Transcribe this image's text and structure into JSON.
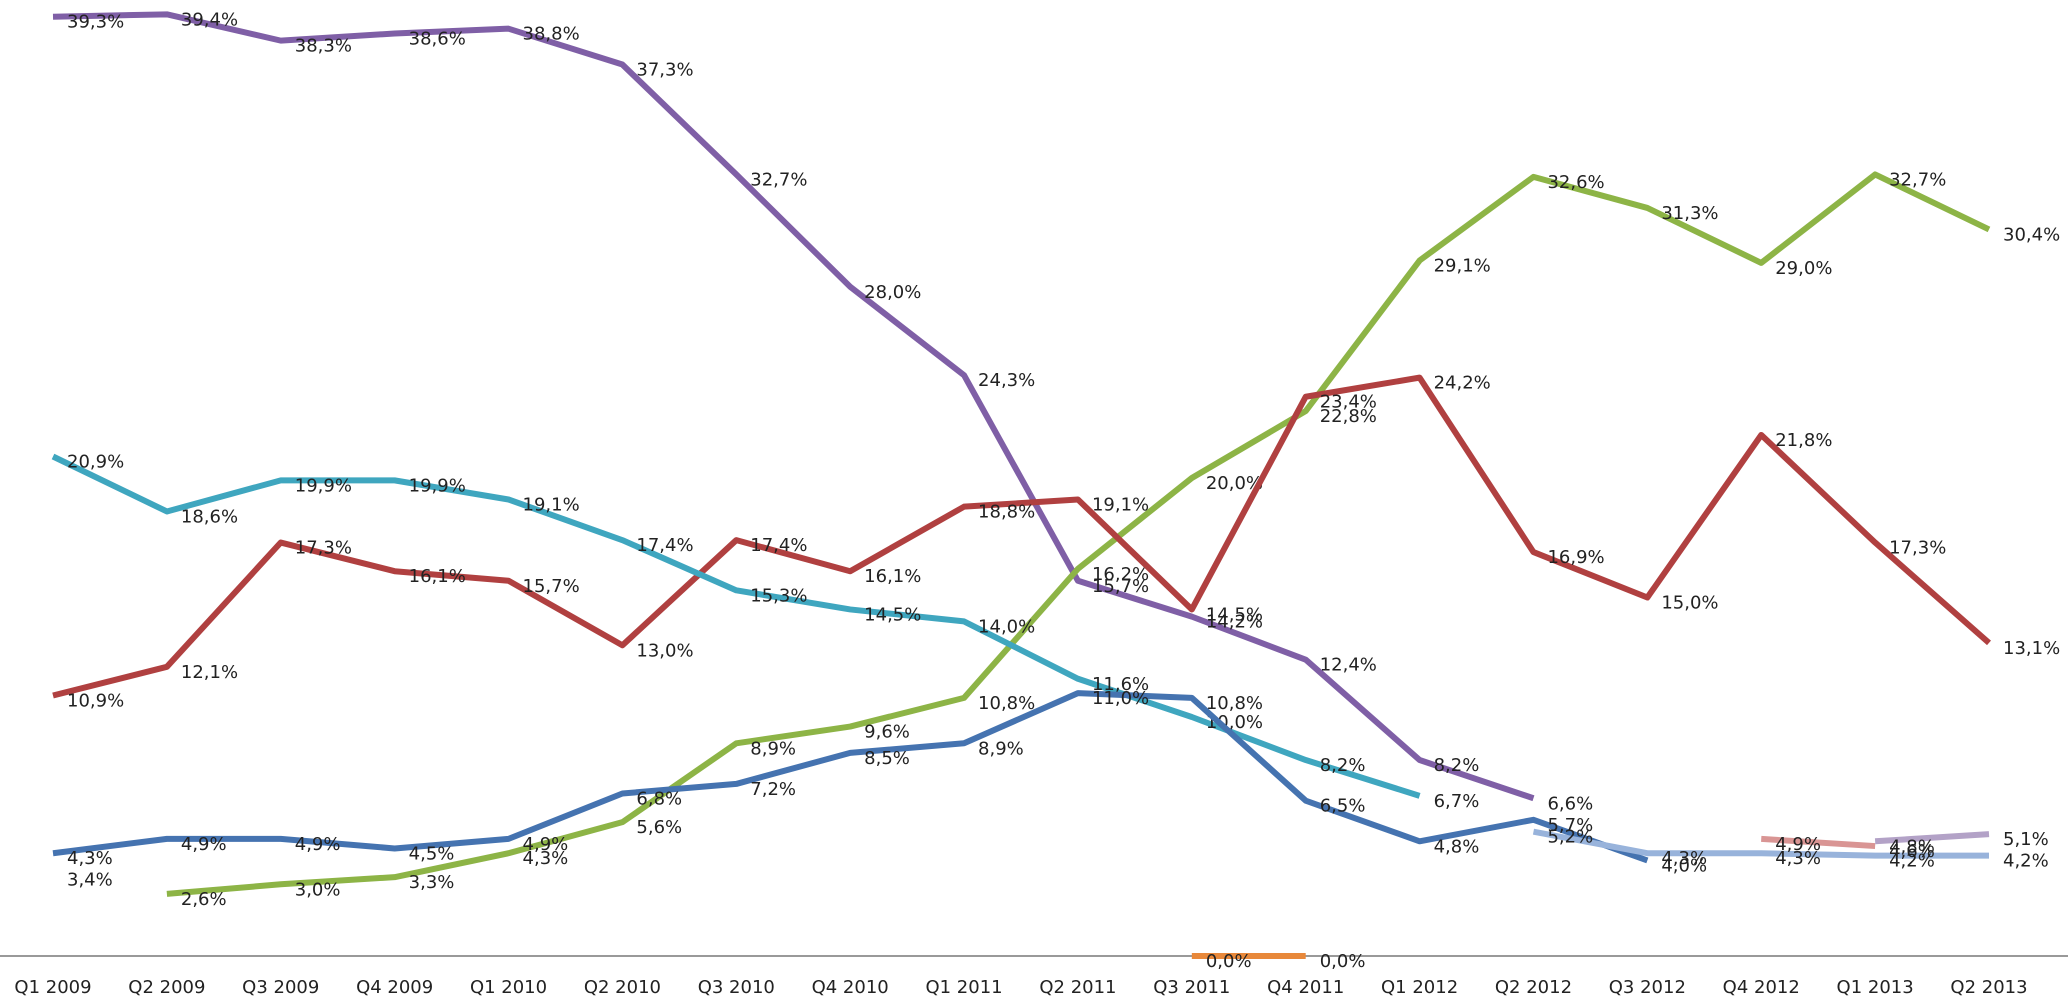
{
  "chart_data": {
    "type": "line",
    "categories": [
      "Q1 2009",
      "Q2 2009",
      "Q3 2009",
      "Q4 2009",
      "Q1 2010",
      "Q2 2010",
      "Q3 2010",
      "Q4 2010",
      "Q1 2011",
      "Q2 2011",
      "Q3 2011",
      "Q4 2011",
      "Q1 2012",
      "Q2 2012",
      "Q3 2012",
      "Q4 2012",
      "Q1 2013",
      "Q2 2013"
    ],
    "ylim": [
      0,
      40
    ],
    "series": [
      {
        "color": "#7f5fa6",
        "values": [
          39.3,
          39.4,
          38.3,
          38.6,
          38.8,
          37.3,
          32.7,
          28.0,
          24.3,
          15.7,
          14.2,
          12.4,
          8.2,
          6.6,
          null,
          null,
          null,
          null
        ],
        "value_labels": [
          "39,3%",
          "39,4%",
          "38,3%",
          "38,6%",
          "38,8%",
          "37,3%",
          "32,7%",
          "28,0%",
          "24,3%",
          "15,7%",
          "14,2%",
          "12,4%",
          "8,2%",
          "6,6%",
          null,
          null,
          null,
          null
        ]
      },
      {
        "color": "#8db446",
        "values": [
          null,
          2.6,
          3.0,
          3.3,
          4.3,
          5.6,
          8.9,
          9.6,
          10.8,
          16.2,
          20.0,
          22.8,
          29.1,
          32.6,
          31.3,
          29.0,
          32.7,
          30.4
        ],
        "value_labels": [
          null,
          "2,6%",
          "3,0%",
          "3,3%",
          "4,3%",
          "5,6%",
          "8,9%",
          "9,6%",
          "10,8%",
          "16,2%",
          "20,0%",
          "22,8%",
          "29,1%",
          "32,6%",
          "31,3%",
          "29,0%",
          "32,7%",
          "30,4%"
        ]
      },
      {
        "color": "#b04040",
        "values": [
          10.9,
          12.1,
          17.3,
          16.1,
          15.7,
          13.0,
          17.4,
          16.1,
          18.8,
          19.1,
          14.5,
          23.4,
          24.2,
          16.9,
          15.0,
          21.8,
          17.3,
          13.1
        ],
        "value_labels": [
          "10,9%",
          "12,1%",
          "17,3%",
          "16,1%",
          "15,7%",
          "13,0%",
          "17,4%",
          "16,1%",
          "18,8%",
          "19,1%",
          "14,5%",
          "23,4%",
          "24,2%",
          "16,9%",
          "15,0%",
          "21,8%",
          "17,3%",
          "13,1%"
        ]
      },
      {
        "color": "#3fa6bf",
        "values": [
          20.9,
          18.6,
          19.9,
          19.9,
          19.1,
          17.4,
          15.3,
          14.5,
          14.0,
          11.6,
          10.0,
          8.2,
          6.7,
          null,
          null,
          null,
          null,
          null
        ],
        "value_labels": [
          "20,9%",
          "18,6%",
          "19,9%",
          "19,9%",
          "19,1%",
          "17,4%",
          "15,3%",
          "14,5%",
          "14,0%",
          "11,6%",
          "10,0%",
          "8,2%",
          "6,7%",
          null,
          null,
          null,
          null,
          null
        ]
      },
      {
        "color": "#4573b0",
        "values": [
          4.3,
          4.9,
          4.9,
          4.5,
          4.9,
          6.8,
          7.2,
          8.5,
          8.9,
          11.0,
          10.8,
          6.5,
          4.8,
          5.7,
          4.0,
          null,
          null,
          null
        ],
        "value_labels": [
          "4,3%",
          "4,9%",
          "4,9%",
          "4,5%",
          "4,9%",
          "6,8%",
          "7,2%",
          "8,5%",
          "8,9%",
          "11,0%",
          "10,8%",
          "6,5%",
          "4,8%",
          "5,7%",
          "4,0%",
          null,
          null,
          null
        ]
      },
      {
        "color": "#98b3db",
        "values": [
          null,
          null,
          null,
          null,
          null,
          null,
          null,
          null,
          null,
          null,
          null,
          null,
          null,
          5.2,
          4.3,
          4.3,
          4.2,
          4.2
        ],
        "value_labels": [
          null,
          null,
          null,
          null,
          null,
          null,
          null,
          null,
          null,
          null,
          null,
          null,
          null,
          "5,2%",
          "4,3%",
          "4,3%",
          "4,2%",
          "4,2%"
        ]
      },
      {
        "color": "#d99594",
        "values": [
          null,
          null,
          null,
          null,
          null,
          null,
          null,
          null,
          null,
          null,
          null,
          null,
          null,
          null,
          null,
          4.9,
          4.6,
          null
        ],
        "value_labels": [
          null,
          null,
          null,
          null,
          null,
          null,
          null,
          null,
          null,
          null,
          null,
          null,
          null,
          null,
          null,
          "4,9%",
          "4,6%",
          null
        ]
      },
      {
        "color": "#b3a2c7",
        "values": [
          null,
          null,
          null,
          null,
          null,
          null,
          null,
          null,
          null,
          null,
          null,
          null,
          null,
          null,
          null,
          null,
          4.8,
          5.1
        ],
        "value_labels": [
          null,
          null,
          null,
          null,
          null,
          null,
          null,
          null,
          null,
          null,
          null,
          null,
          null,
          null,
          null,
          null,
          "4,8%",
          "5,1%"
        ]
      },
      {
        "color": "#e8883a",
        "values": [
          null,
          null,
          null,
          null,
          null,
          null,
          null,
          null,
          null,
          null,
          0.0,
          0.0,
          null,
          null,
          null,
          null,
          null,
          null
        ],
        "value_labels": [
          null,
          null,
          null,
          null,
          null,
          null,
          null,
          null,
          null,
          null,
          "0,0%",
          "0,0%",
          null,
          null,
          null,
          null,
          null,
          null
        ]
      },
      {
        "color": "#8db446",
        "values": [
          3.4,
          null,
          null,
          null,
          null,
          null,
          null,
          null,
          null,
          null,
          null,
          null,
          null,
          null,
          null,
          null,
          null,
          null
        ],
        "value_labels": [
          "3,4%",
          null,
          null,
          null,
          null,
          null,
          null,
          null,
          null,
          null,
          null,
          null,
          null,
          null,
          null,
          null,
          null,
          null
        ]
      }
    ]
  }
}
